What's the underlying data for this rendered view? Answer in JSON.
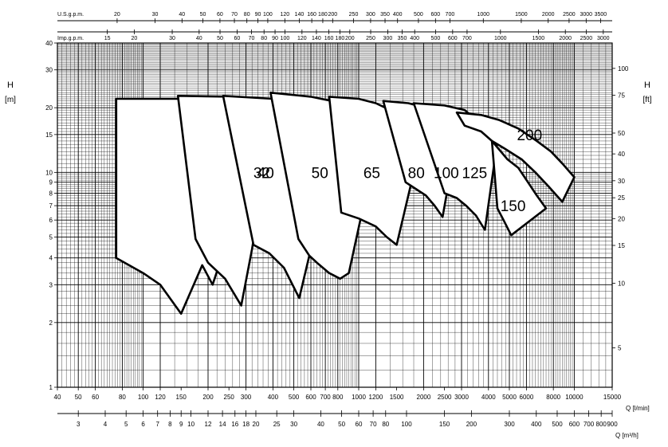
{
  "chart_data": {
    "type": "line",
    "title": "",
    "scale": "log-log",
    "grid": true,
    "xlabel": "Q [l/min]",
    "xlabel_secondary": "Q [m³/h]",
    "ylabel": "H [m]",
    "ylabel_secondary": "H [ft]",
    "xlim": [
      40,
      15000
    ],
    "ylim": [
      1,
      40
    ],
    "x_ticks_lmin": [
      "40",
      "50",
      "60",
      "80",
      "100",
      "120",
      "150",
      "200",
      "250",
      "300",
      "400",
      "500",
      "600",
      "700",
      "800",
      "1000",
      "1200",
      "1500",
      "2000",
      "2500",
      "3000",
      "4000",
      "5000",
      "6000",
      "8000",
      "10000",
      "15000"
    ],
    "x_ticks_m3h": [
      "3",
      "4",
      "5",
      "6",
      "7",
      "8",
      "9",
      "10",
      "12",
      "14",
      "16",
      "18",
      "20",
      "25",
      "30",
      "40",
      "50",
      "60",
      "70",
      "80",
      "100",
      "150",
      "200",
      "300",
      "400",
      "500",
      "600",
      "700",
      "800",
      "900"
    ],
    "usgpm_label": "U.S.g.p.m.",
    "usgpm_ticks": [
      "20",
      "30",
      "40",
      "50",
      "60",
      "70",
      "80",
      "90",
      "100",
      "120",
      "140",
      "160",
      "180",
      "200",
      "250",
      "300",
      "350",
      "400",
      "500",
      "600",
      "700",
      "1000",
      "1500",
      "2000",
      "2500",
      "3000",
      "3500"
    ],
    "impgpm_label": "Imp.g.p.m.",
    "impgpm_ticks": [
      "15",
      "20",
      "30",
      "40",
      "50",
      "60",
      "70",
      "80",
      "90",
      "100",
      "120",
      "140",
      "160",
      "180",
      "200",
      "250",
      "300",
      "350",
      "400",
      "500",
      "600",
      "700",
      "1000",
      "1500",
      "2000",
      "2500",
      "3000"
    ],
    "y_ticks_m": [
      "1",
      "2",
      "3",
      "4",
      "5",
      "6",
      "7",
      "8",
      "9",
      "10",
      "15",
      "20",
      "30",
      "40"
    ],
    "y_ticks_ft": [
      "5",
      "10",
      "15",
      "20",
      "25",
      "30",
      "40",
      "50",
      "75",
      "100"
    ],
    "series": [
      {
        "name": "32",
        "label_at": [
          355,
          10
        ],
        "outline": [
          [
            75,
            22
          ],
          [
            240,
            22
          ],
          [
            255,
            20
          ],
          [
            275,
            17
          ],
          [
            290,
            14.8
          ],
          [
            292,
            10.8
          ],
          [
            280,
            10
          ],
          [
            265,
            8
          ],
          [
            250,
            6
          ],
          [
            225,
            3.7
          ],
          [
            210,
            3
          ],
          [
            188,
            3.7
          ],
          [
            150,
            2.2
          ],
          [
            120,
            3
          ],
          [
            100,
            3.4
          ],
          [
            75,
            4
          ],
          [
            75,
            22
          ]
        ]
      },
      {
        "name": "40",
        "label_at": [
          370,
          10
        ],
        "outline": [
          [
            145,
            22.7
          ],
          [
            265,
            22.5
          ],
          [
            320,
            20.5
          ],
          [
            385,
            18.5
          ],
          [
            400,
            17.5
          ],
          [
            320,
            4.4
          ],
          [
            285,
            2.4
          ],
          [
            240,
            3.2
          ],
          [
            200,
            3.8
          ],
          [
            175,
            4.9
          ],
          [
            145,
            22.7
          ]
        ]
      },
      {
        "name": "50",
        "label_at": [
          660,
          10
        ],
        "outline": [
          [
            235,
            22.7
          ],
          [
            400,
            22
          ],
          [
            500,
            20.5
          ],
          [
            600,
            18.5
          ],
          [
            680,
            16
          ],
          [
            740,
            15
          ],
          [
            600,
            4.4
          ],
          [
            530,
            2.6
          ],
          [
            450,
            3.6
          ],
          [
            385,
            4.2
          ],
          [
            325,
            4.6
          ],
          [
            235,
            22.7
          ]
        ]
      },
      {
        "name": "65",
        "label_at": [
          1150,
          10
        ],
        "outline": [
          [
            390,
            23.5
          ],
          [
            600,
            22.5
          ],
          [
            750,
            21.5
          ],
          [
            870,
            20.5
          ],
          [
            1020,
            18
          ],
          [
            1240,
            15
          ],
          [
            900,
            3.4
          ],
          [
            820,
            3.2
          ],
          [
            730,
            3.4
          ],
          [
            640,
            3.8
          ],
          [
            590,
            4.1
          ],
          [
            525,
            4.9
          ],
          [
            390,
            23.5
          ]
        ]
      },
      {
        "name": "80",
        "label_at": [
          1850,
          10
        ],
        "outline": [
          [
            730,
            22.5
          ],
          [
            1000,
            22
          ],
          [
            1200,
            21
          ],
          [
            1400,
            19.5
          ],
          [
            1650,
            17.5
          ],
          [
            1950,
            14
          ],
          [
            1500,
            4.6
          ],
          [
            1350,
            5
          ],
          [
            1200,
            5.6
          ],
          [
            1000,
            6.1
          ],
          [
            830,
            6.5
          ],
          [
            730,
            22.5
          ]
        ]
      },
      {
        "name": "100",
        "label_at": [
          2550,
          10
        ],
        "outline": [
          [
            1300,
            21.5
          ],
          [
            1700,
            21
          ],
          [
            2050,
            20
          ],
          [
            2350,
            18.5
          ],
          [
            2650,
            16.5
          ],
          [
            2850,
            14.5
          ],
          [
            2450,
            6.2
          ],
          [
            2250,
            7
          ],
          [
            2050,
            7.8
          ],
          [
            1800,
            8.5
          ],
          [
            1650,
            9
          ],
          [
            1300,
            21.5
          ]
        ]
      },
      {
        "name": "125",
        "label_at": [
          3450,
          10
        ],
        "outline": [
          [
            1800,
            21
          ],
          [
            2500,
            20.5
          ],
          [
            3100,
            19.5
          ],
          [
            3650,
            17
          ],
          [
            4150,
            15
          ],
          [
            4400,
            14
          ],
          [
            3850,
            5.4
          ],
          [
            3500,
            6.3
          ],
          [
            3150,
            7
          ],
          [
            2850,
            7.6
          ],
          [
            2500,
            8
          ],
          [
            1800,
            21
          ]
        ]
      },
      {
        "name": "150",
        "label_at": [
          5200,
          7
        ],
        "outline": [
          [
            4150,
            14
          ],
          [
            4900,
            11.5
          ],
          [
            5500,
            10.5
          ],
          [
            6100,
            9
          ],
          [
            6700,
            7.8
          ],
          [
            7400,
            6.8
          ],
          [
            5100,
            5.1
          ],
          [
            4700,
            6
          ],
          [
            4400,
            6.8
          ],
          [
            4150,
            14
          ]
        ]
      },
      {
        "name": "200",
        "label_at": [
          6200,
          15
        ],
        "outline": [
          [
            2850,
            19
          ],
          [
            3700,
            18.5
          ],
          [
            4500,
            17.5
          ],
          [
            5500,
            16
          ],
          [
            6700,
            14
          ],
          [
            7800,
            12.5
          ],
          [
            8800,
            11
          ],
          [
            10000,
            9.5
          ],
          [
            8800,
            7.3
          ],
          [
            7600,
            8.6
          ],
          [
            6600,
            10
          ],
          [
            5700,
            11.5
          ],
          [
            4700,
            13
          ],
          [
            4150,
            14
          ],
          [
            3700,
            15.5
          ],
          [
            3100,
            16.5
          ],
          [
            2850,
            19
          ]
        ]
      }
    ]
  }
}
